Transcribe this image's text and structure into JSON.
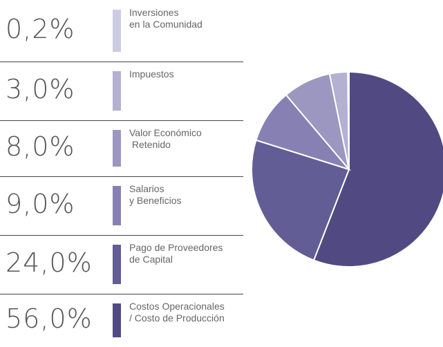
{
  "chart_data": {
    "type": "pie",
    "categories": [
      "Inversiones\nen la Comunidad",
      "Impuestos",
      "Valor Económico\n Retenido",
      "Salarios\ny Beneficios",
      "Pago de Proveedores\nde Capital",
      "Costos Operacionales\n/ Costo de Producción"
    ],
    "values": [
      0.2,
      3.0,
      8.0,
      9.0,
      24.0,
      56.0
    ],
    "value_labels": [
      "0,2%",
      "3,0%",
      "8,0%",
      "9,0%",
      "24,0%",
      "56,0%"
    ],
    "colors": [
      "#cdcbe4",
      "#b3b0d2",
      "#9c97c0",
      "#8780b2",
      "#625d94",
      "#514a82"
    ]
  }
}
